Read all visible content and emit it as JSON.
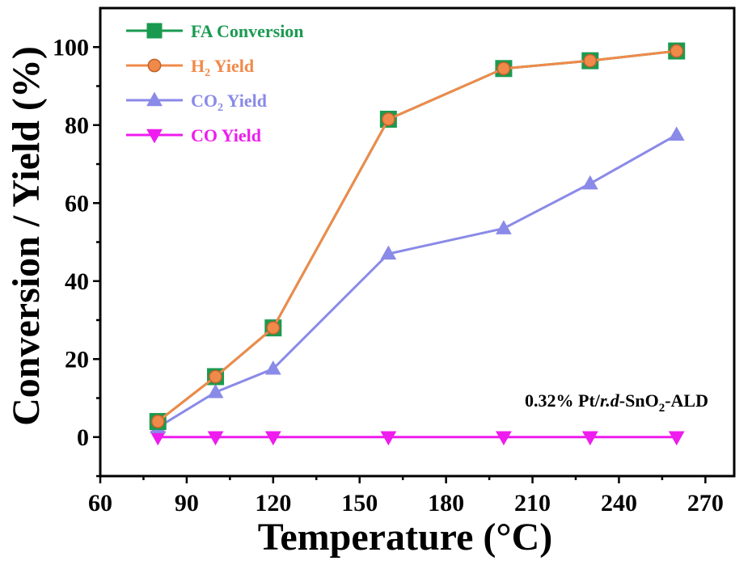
{
  "chart_data": {
    "type": "line",
    "xlabel": "Temperature (°C)",
    "ylabel": "Conversion / Yield (%)",
    "xlim": [
      60,
      280
    ],
    "ylim": [
      -10,
      110
    ],
    "xticks": [
      60,
      90,
      120,
      150,
      180,
      210,
      240,
      270
    ],
    "yticks": [
      0,
      20,
      40,
      60,
      80,
      100
    ],
    "x": [
      80,
      100,
      120,
      160,
      200,
      230,
      260
    ],
    "series": [
      {
        "name": "FA Conversion",
        "name_main": "FA Conversion",
        "name_sub": "",
        "name_tail": "",
        "color": "#1a9a50",
        "marker": "square",
        "values": [
          4,
          15.5,
          28,
          81.5,
          94.5,
          96.5,
          99
        ]
      },
      {
        "name": "H2 Yield",
        "name_main": "H",
        "name_sub": "2",
        "name_tail": " Yield",
        "color": "#f08a4b",
        "marker": "circle",
        "values": [
          4,
          15.5,
          28,
          81.5,
          94.5,
          96.5,
          99
        ]
      },
      {
        "name": "CO2 Yield",
        "name_main": "CO",
        "name_sub": "2",
        "name_tail": " Yield",
        "color": "#8a8ae8",
        "marker": "triangle-up",
        "values": [
          2.5,
          11.5,
          17.5,
          47,
          53.5,
          65,
          77.5
        ]
      },
      {
        "name": "CO Yield",
        "name_main": "CO Yield",
        "name_sub": "",
        "name_tail": "",
        "color": "#ee1cee",
        "marker": "triangle-down",
        "values": [
          0,
          0,
          0,
          0,
          0,
          0,
          0
        ]
      }
    ],
    "annotation": {
      "main": "0.32% Pt/",
      "italic": "r.d",
      "mid": "-SnO",
      "sub": "2",
      "tail": "-ALD"
    },
    "legend_position": "top-left",
    "grid": false
  }
}
